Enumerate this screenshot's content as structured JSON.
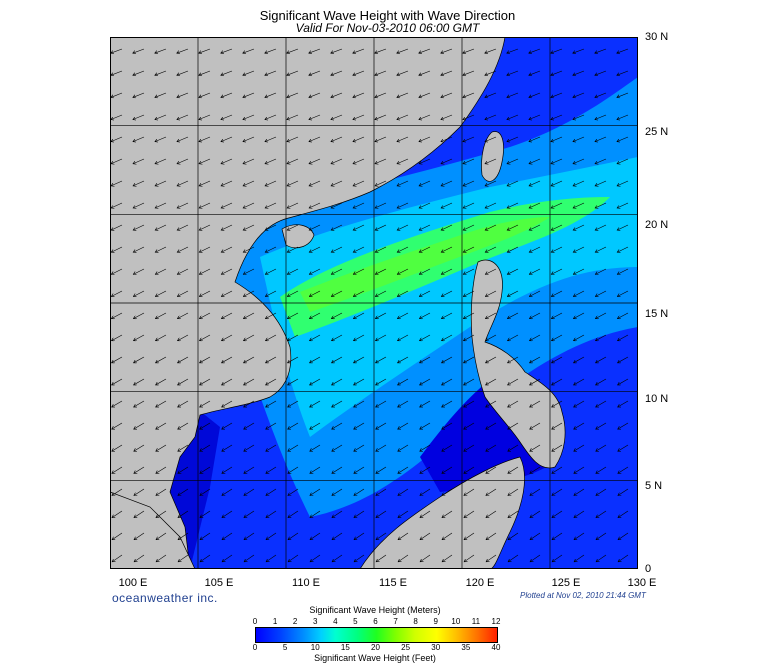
{
  "header": {
    "title": "Significant Wave Height with Wave Direction",
    "subtitle": "Valid For Nov-03-2010 06:00 GMT"
  },
  "map": {
    "lat_labels": [
      "30 N",
      "25 N",
      "20 N",
      "15 N",
      "10 N",
      "5 N",
      "0"
    ],
    "lon_labels": [
      "100 E",
      "105 E",
      "110 E",
      "115 E",
      "120 E",
      "125 E",
      "130 E"
    ],
    "colors": {
      "land": "#c0c0c0",
      "deep": "#0000e6",
      "mid": "#0080ff",
      "light": "#00e0ff",
      "peak": "#20ff40",
      "grid": "#000000",
      "arrow": "#000000"
    }
  },
  "footer": {
    "brand": "oceanweather inc.",
    "plotted": "Plotted at Nov 02, 2010 21:44 GMT"
  },
  "colorbar": {
    "meters_title": "Significant Wave Height (Meters)",
    "feet_title": "Significant Wave Height (Feet)",
    "meters_ticks": [
      "0",
      "1",
      "2",
      "3",
      "4",
      "5",
      "6",
      "7",
      "8",
      "9",
      "10",
      "11",
      "12"
    ],
    "feet_ticks": [
      "0",
      "5",
      "10",
      "15",
      "20",
      "25",
      "30",
      "35",
      "40"
    ]
  }
}
